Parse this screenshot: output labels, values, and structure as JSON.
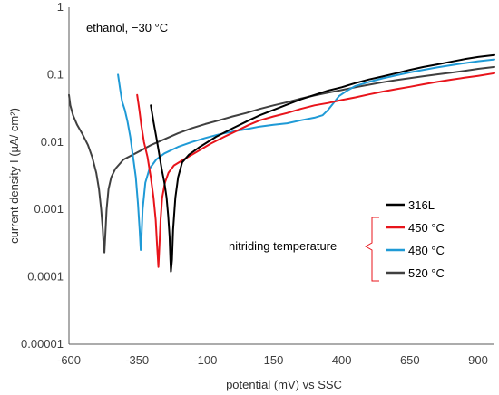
{
  "chart_data": {
    "type": "line",
    "title": "",
    "xlabel": "potential (mV) vs SSC",
    "ylabel": "current density I (µA/ cm²)",
    "xlim": [
      -600,
      960
    ],
    "ylim": [
      1e-05,
      1
    ],
    "yscale": "log",
    "xticks": [
      "-600",
      "-350",
      "-100",
      "150",
      "400",
      "650",
      "900"
    ],
    "yticks": [
      "0.00001",
      "0.0001",
      "0.001",
      "0.01",
      "0.1",
      "1"
    ],
    "grid": false,
    "annotation_top": "ethanol, −30 °C",
    "annotation_group": "nitriding temperature",
    "legend_position": "right",
    "series": [
      {
        "name": "316L",
        "color": "#000000",
        "points": [
          [
            -300,
            0.035
          ],
          [
            -290,
            0.02
          ],
          [
            -280,
            0.012
          ],
          [
            -270,
            0.007
          ],
          [
            -260,
            0.004
          ],
          [
            -250,
            0.0025
          ],
          [
            -242,
            0.0015
          ],
          [
            -236,
            0.0008
          ],
          [
            -231,
            0.0004
          ],
          [
            -228,
            0.00018
          ],
          [
            -226,
            0.00012
          ],
          [
            -222,
            0.00018
          ],
          [
            -218,
            0.0005
          ],
          [
            -210,
            0.0015
          ],
          [
            -200,
            0.003
          ],
          [
            -185,
            0.005
          ],
          [
            -160,
            0.0065
          ],
          [
            -120,
            0.0085
          ],
          [
            -60,
            0.012
          ],
          [
            0,
            0.016
          ],
          [
            60,
            0.021
          ],
          [
            100,
            0.025
          ],
          [
            150,
            0.03
          ],
          [
            200,
            0.036
          ],
          [
            250,
            0.043
          ],
          [
            300,
            0.05
          ],
          [
            350,
            0.058
          ],
          [
            400,
            0.065
          ],
          [
            450,
            0.075
          ],
          [
            500,
            0.085
          ],
          [
            550,
            0.094
          ],
          [
            600,
            0.105
          ],
          [
            650,
            0.118
          ],
          [
            700,
            0.13
          ],
          [
            750,
            0.142
          ],
          [
            800,
            0.155
          ],
          [
            850,
            0.17
          ],
          [
            900,
            0.183
          ],
          [
            960,
            0.195
          ]
        ]
      },
      {
        "name": "450 °C",
        "color": "#e8141b",
        "points": [
          [
            -350,
            0.05
          ],
          [
            -342,
            0.03
          ],
          [
            -335,
            0.018
          ],
          [
            -325,
            0.01
          ],
          [
            -312,
            0.006
          ],
          [
            -300,
            0.003
          ],
          [
            -290,
            0.0015
          ],
          [
            -282,
            0.0007
          ],
          [
            -277,
            0.0003
          ],
          [
            -272,
            0.00014
          ],
          [
            -269,
            0.00025
          ],
          [
            -264,
            0.0007
          ],
          [
            -258,
            0.0015
          ],
          [
            -248,
            0.0025
          ],
          [
            -235,
            0.0035
          ],
          [
            -215,
            0.0045
          ],
          [
            -180,
            0.0055
          ],
          [
            -130,
            0.0072
          ],
          [
            -80,
            0.0095
          ],
          [
            -30,
            0.012
          ],
          [
            20,
            0.015
          ],
          [
            60,
            0.018
          ],
          [
            100,
            0.021
          ],
          [
            150,
            0.024
          ],
          [
            200,
            0.027
          ],
          [
            250,
            0.031
          ],
          [
            300,
            0.035
          ],
          [
            350,
            0.038
          ],
          [
            400,
            0.042
          ],
          [
            450,
            0.046
          ],
          [
            500,
            0.051
          ],
          [
            550,
            0.056
          ],
          [
            600,
            0.061
          ],
          [
            650,
            0.066
          ],
          [
            700,
            0.072
          ],
          [
            750,
            0.078
          ],
          [
            800,
            0.084
          ],
          [
            850,
            0.09
          ],
          [
            900,
            0.096
          ],
          [
            960,
            0.105
          ]
        ]
      },
      {
        "name": "480 °C",
        "color": "#1f9ad6",
        "points": [
          [
            -420,
            0.1
          ],
          [
            -412,
            0.06
          ],
          [
            -405,
            0.04
          ],
          [
            -395,
            0.03
          ],
          [
            -385,
            0.02
          ],
          [
            -375,
            0.012
          ],
          [
            -365,
            0.006
          ],
          [
            -355,
            0.003
          ],
          [
            -347,
            0.0012
          ],
          [
            -341,
            0.0005
          ],
          [
            -337,
            0.00025
          ],
          [
            -334,
            0.0004
          ],
          [
            -330,
            0.001
          ],
          [
            -320,
            0.0025
          ],
          [
            -305,
            0.004
          ],
          [
            -280,
            0.0055
          ],
          [
            -250,
            0.0068
          ],
          [
            -200,
            0.0085
          ],
          [
            -150,
            0.01
          ],
          [
            -100,
            0.0115
          ],
          [
            -50,
            0.013
          ],
          [
            0,
            0.0143
          ],
          [
            50,
            0.0155
          ],
          [
            100,
            0.017
          ],
          [
            150,
            0.018
          ],
          [
            200,
            0.019
          ],
          [
            250,
            0.021
          ],
          [
            300,
            0.023
          ],
          [
            330,
            0.025
          ],
          [
            350,
            0.03
          ],
          [
            370,
            0.038
          ],
          [
            390,
            0.048
          ],
          [
            420,
            0.058
          ],
          [
            450,
            0.068
          ],
          [
            500,
            0.078
          ],
          [
            550,
            0.088
          ],
          [
            600,
            0.098
          ],
          [
            650,
            0.108
          ],
          [
            700,
            0.118
          ],
          [
            750,
            0.128
          ],
          [
            800,
            0.138
          ],
          [
            850,
            0.148
          ],
          [
            900,
            0.158
          ],
          [
            960,
            0.168
          ]
        ]
      },
      {
        "name": "520 °C",
        "color": "#404040",
        "points": [
          [
            -600,
            0.05
          ],
          [
            -595,
            0.035
          ],
          [
            -585,
            0.025
          ],
          [
            -570,
            0.018
          ],
          [
            -550,
            0.013
          ],
          [
            -530,
            0.009
          ],
          [
            -515,
            0.006
          ],
          [
            -500,
            0.0035
          ],
          [
            -490,
            0.002
          ],
          [
            -482,
            0.001
          ],
          [
            -476,
            0.0005
          ],
          [
            -472,
            0.00025
          ],
          [
            -470,
            0.00023
          ],
          [
            -467,
            0.0004
          ],
          [
            -462,
            0.001
          ],
          [
            -455,
            0.002
          ],
          [
            -445,
            0.003
          ],
          [
            -430,
            0.004
          ],
          [
            -400,
            0.0055
          ],
          [
            -350,
            0.007
          ],
          [
            -300,
            0.009
          ],
          [
            -250,
            0.011
          ],
          [
            -200,
            0.0135
          ],
          [
            -150,
            0.016
          ],
          [
            -100,
            0.0185
          ],
          [
            -50,
            0.021
          ],
          [
            0,
            0.024
          ],
          [
            50,
            0.027
          ],
          [
            100,
            0.031
          ],
          [
            150,
            0.035
          ],
          [
            200,
            0.039
          ],
          [
            250,
            0.044
          ],
          [
            300,
            0.049
          ],
          [
            350,
            0.054
          ],
          [
            400,
            0.059
          ],
          [
            450,
            0.065
          ],
          [
            500,
            0.071
          ],
          [
            550,
            0.077
          ],
          [
            600,
            0.083
          ],
          [
            650,
            0.089
          ],
          [
            700,
            0.095
          ],
          [
            750,
            0.101
          ],
          [
            800,
            0.107
          ],
          [
            850,
            0.114
          ],
          [
            900,
            0.122
          ],
          [
            960,
            0.13
          ]
        ]
      }
    ]
  }
}
